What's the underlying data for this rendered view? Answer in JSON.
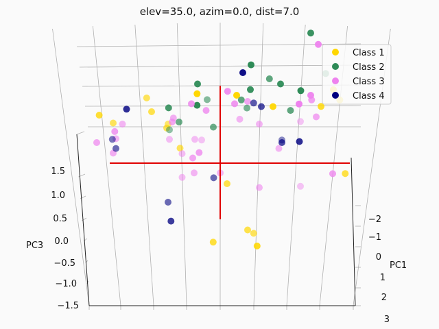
{
  "chart_data": {
    "type": "scatter",
    "title": "elev=35.0, azim=0.0, dist=7.0",
    "zlabel": "PC3",
    "ylabel": "PC1",
    "z_ticks": [
      "1.5",
      "1.0",
      "0.5",
      "0.0",
      "−0.5",
      "−1.0",
      "−1.5"
    ],
    "y_ticks": [
      "−2",
      "−1",
      "0",
      "1",
      "2",
      "3"
    ],
    "legend": {
      "placement": "top-right"
    },
    "series": [
      {
        "name": "Class 1",
        "color": "#FFD700",
        "points": [
          [
            1.5,
            1.3,
            0.9
          ],
          [
            -1.7,
            0.9,
            0.65
          ],
          [
            1.4,
            1.05,
            0.7
          ],
          [
            -0.3,
            1.2,
            1.0
          ],
          [
            0.1,
            -0.4,
            0.5
          ],
          [
            -0.8,
            0.8,
            0.3
          ],
          [
            -0.1,
            -1.5,
            0.6
          ],
          [
            0.4,
            -1.3,
            0.5
          ],
          [
            0.5,
            -1.5,
            0.8
          ],
          [
            1.8,
            -0.2,
            0.55
          ],
          [
            -1.0,
            1.0,
            0.5
          ],
          [
            -0.8,
            0.7,
            0.4
          ],
          [
            0.7,
            1.0,
            0.9
          ],
          [
            -1.6,
            0.8,
            0.4
          ],
          [
            1.7,
            1.2,
            0.6
          ],
          [
            -0.6,
            0.3,
            0.4
          ],
          [
            0.5,
            -1.4,
            0.4
          ],
          [
            0.2,
            1.1,
            1.3
          ],
          [
            -1.1,
            1.3,
            0.4
          ]
        ]
      },
      {
        "name": "Class 2",
        "color": "#2E8B57",
        "points": [
          [
            1.2,
            2.3,
            0.9
          ],
          [
            0.7,
            1.6,
            0.6
          ],
          [
            1.5,
            1.7,
            0.6
          ],
          [
            0.4,
            1.7,
            1.0
          ],
          [
            -0.3,
            1.4,
            0.9
          ],
          [
            0.8,
            1.4,
            0.9
          ],
          [
            -0.8,
            0.7,
            0.2
          ],
          [
            -0.2,
            1.3,
            0.3
          ],
          [
            -0.6,
            0.8,
            0.5
          ],
          [
            1.0,
            1.0,
            0.6
          ],
          [
            0.4,
            1.1,
            0.4
          ],
          [
            -0.3,
            1.0,
            1.0
          ],
          [
            1.0,
            1.2,
            1.2
          ],
          [
            -0.1,
            0.7,
            0.5
          ],
          [
            0.4,
            1.3,
            0.9
          ],
          [
            -0.7,
            1.0,
            0.8
          ],
          [
            0.3,
            1.2,
            0.6
          ]
        ]
      },
      {
        "name": "Class 3",
        "color": "#EE82EE",
        "points": [
          [
            1.3,
            2.1,
            0.9
          ],
          [
            1.3,
            1.2,
            0.6
          ],
          [
            1.4,
            0.9,
            0.5
          ],
          [
            0.6,
            0.8,
            0.3
          ],
          [
            -0.8,
            0.5,
            0.2
          ],
          [
            0.3,
            0.9,
            0.3
          ],
          [
            0.2,
            1.1,
            0.7
          ],
          [
            -0.7,
            0.9,
            0.4
          ],
          [
            -0.3,
            0.5,
            0.1
          ],
          [
            1.3,
            0.9,
            0.1
          ],
          [
            -1.5,
            0.6,
            0.6
          ],
          [
            -0.4,
            1.1,
            0.7
          ],
          [
            0.4,
            1.2,
            0.5
          ],
          [
            -1.8,
            0.4,
            0.5
          ],
          [
            -0.2,
            1.0,
            0.6
          ],
          [
            -0.4,
            0.5,
            0.2
          ],
          [
            1.3,
            -0.5,
            0.1
          ],
          [
            0.9,
            0.3,
            0.3
          ],
          [
            -0.4,
            0.1,
            0.5
          ],
          [
            -1.6,
            0.2,
            0.4
          ],
          [
            0.0,
            -0.2,
            0.3
          ],
          [
            -1.5,
            0.8,
            0.3
          ],
          [
            -0.4,
            -0.2,
            0.3
          ],
          [
            1.6,
            -0.2,
            0.6
          ],
          [
            -0.6,
            0.2,
            0.2
          ],
          [
            0.1,
            1.3,
            0.8
          ],
          [
            -0.7,
            0.8,
            0.5
          ],
          [
            -0.6,
            -0.3,
            0.2
          ],
          [
            1.0,
            1.0,
            1.1
          ],
          [
            0.6,
            -0.5,
            0.3
          ],
          [
            -1.6,
            0.5,
            0.3
          ],
          [
            -0.3,
            0.2,
            0.6
          ],
          [
            1.2,
            1.2,
            0.9
          ]
        ]
      },
      {
        "name": "Class 4",
        "color": "#000080",
        "points": [
          [
            0.3,
            1.6,
            0.9
          ],
          [
            -1.3,
            1.0,
            0.7
          ],
          [
            -1.6,
            0.3,
            0.3
          ],
          [
            0.5,
            1.2,
            0.4
          ],
          [
            -0.1,
            -0.3,
            0.3
          ],
          [
            1.0,
            0.5,
            0.1
          ],
          [
            -0.7,
            -1.1,
            0.6
          ],
          [
            -1.7,
            0.5,
            0.2
          ],
          [
            0.9,
            0.4,
            0.5
          ],
          [
            -0.8,
            -0.8,
            0.3
          ],
          [
            0.6,
            1.1,
            0.5
          ],
          [
            1.1,
            0.4,
            0.7
          ]
        ]
      }
    ]
  }
}
